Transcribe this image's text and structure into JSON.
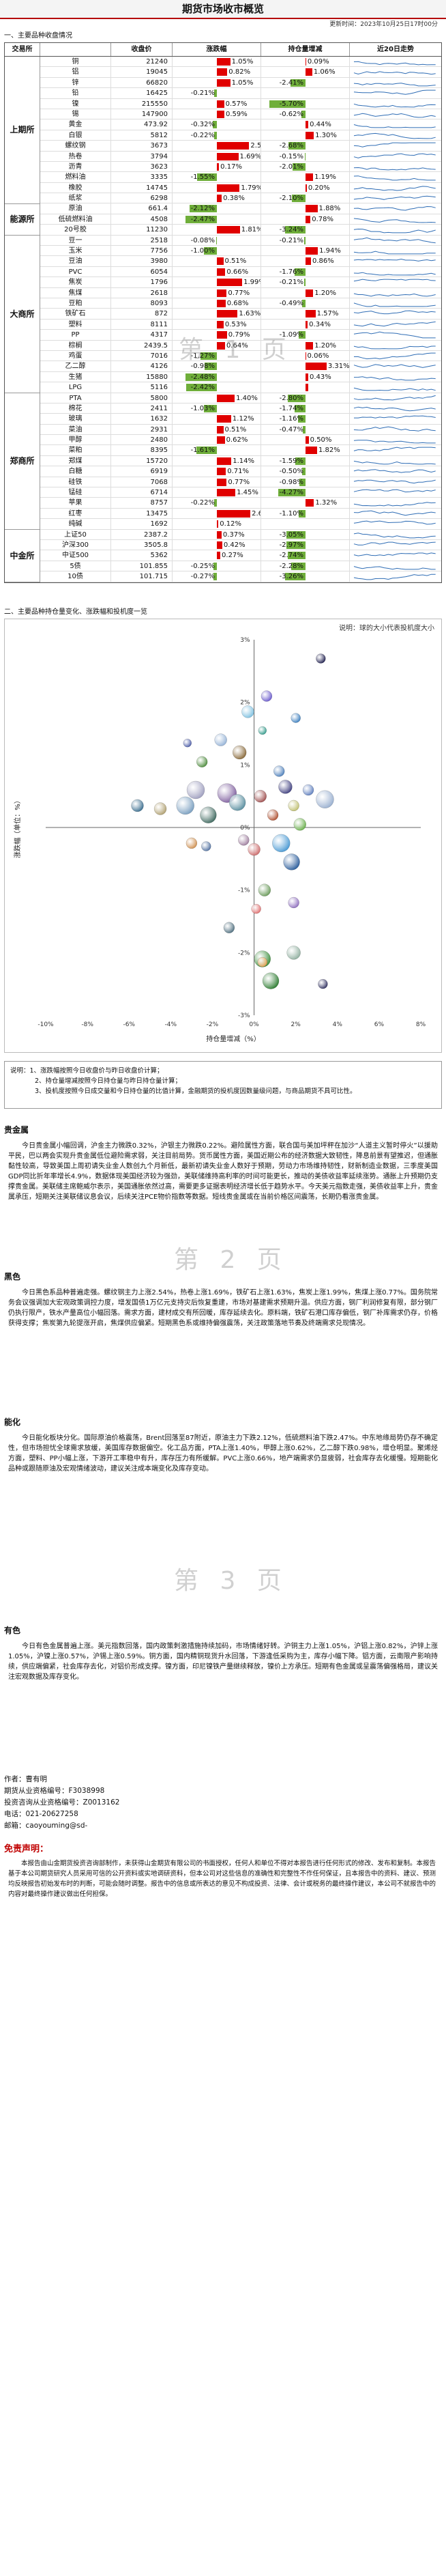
{
  "title": "期货市场收市概览",
  "update_time": "更新时间：2023年10月25日17时00分",
  "section1_title": "一、主要品种收盘情况",
  "table_headers": [
    "交易所",
    "收盘价",
    "涨跌幅",
    "持仓量增减",
    "近20日走势"
  ],
  "exchanges": [
    {
      "name": "上期所",
      "rows": [
        {
          "name": "铜",
          "price": "21240",
          "chg": 1.05,
          "chg_label": "1.05%",
          "oi": 0.09,
          "oi_label": "0.09%"
        },
        {
          "name": "铝",
          "price": "19045",
          "chg": 0.82,
          "chg_label": "0.82%",
          "oi": 1.06,
          "oi_label": "1.06%"
        },
        {
          "name": "锌",
          "price": "66820",
          "chg": 1.05,
          "chg_label": "1.05%",
          "oi": -2.41,
          "oi_label": "-2.41%"
        },
        {
          "name": "铅",
          "price": "16425",
          "chg": -0.21,
          "chg_label": "-0.21%",
          "oi": 0.0,
          "oi_label": ""
        },
        {
          "name": "镍",
          "price": "215550",
          "chg": 0.57,
          "chg_label": "0.57%",
          "oi": -5.7,
          "oi_label": "-5.70%"
        },
        {
          "name": "锡",
          "price": "147900",
          "oi": -0.62,
          "oi_label": "-0.62%",
          "chg": 0.59,
          "chg_label": "0.59%"
        },
        {
          "name": "黄金",
          "price": "473.92",
          "chg": -0.32,
          "chg_label": "-0.32%",
          "oi": 0.44,
          "oi_label": "0.44%"
        },
        {
          "name": "白银",
          "price": "5812",
          "chg": -0.22,
          "chg_label": "-0.22%",
          "oi": 1.3,
          "oi_label": "1.30%"
        },
        {
          "name": "螺纹钢",
          "price": "3673",
          "chg": 2.54,
          "chg_label": "2.54%",
          "oi": -2.68,
          "oi_label": "-2.68%"
        },
        {
          "name": "热卷",
          "price": "3794",
          "chg": 1.69,
          "chg_label": "1.69%",
          "oi": -0.15,
          "oi_label": "-0.15%"
        },
        {
          "name": "沥青",
          "price": "3623",
          "chg": 0.17,
          "chg_label": "0.17%",
          "oi": -2.01,
          "oi_label": "-2.01%"
        },
        {
          "name": "燃料油",
          "price": "3335",
          "chg": -1.55,
          "chg_label": "-1.55%",
          "oi": 1.19,
          "oi_label": "1.19%"
        },
        {
          "name": "橡胶",
          "price": "14745",
          "chg": 1.79,
          "chg_label": "1.79%",
          "oi": 0.2,
          "oi_label": "0.20%"
        },
        {
          "name": "纸浆",
          "price": "6298",
          "chg": 0.38,
          "chg_label": "0.38%",
          "oi": -2.1,
          "oi_label": "-2.10%"
        }
      ]
    },
    {
      "name": "能源所",
      "rows": [
        {
          "name": "原油",
          "price": "661.4",
          "chg": -2.12,
          "chg_label": "-2.12%",
          "oi": 1.88,
          "oi_label": "1.88%"
        },
        {
          "name": "低硫燃料油",
          "price": "4508",
          "chg": -2.47,
          "chg_label": "-2.47%",
          "oi": 0.78,
          "oi_label": "0.78%"
        },
        {
          "name": "20号胶",
          "price": "11230",
          "chg": 1.81,
          "chg_label": "1.81%",
          "oi": -3.24,
          "oi_label": "-3.24%"
        }
      ]
    },
    {
      "name": "大商所",
      "rows": [
        {
          "name": "豆一",
          "price": "2518",
          "chg": -0.08,
          "chg_label": "-0.08%",
          "oi": -0.21,
          "oi_label": "-0.21%"
        },
        {
          "name": "玉米",
          "price": "7756",
          "chg": -1.0,
          "chg_label": "-1.00%",
          "oi": 1.94,
          "oi_label": "1.94%"
        },
        {
          "name": "豆油",
          "price": "3980",
          "chg": 0.51,
          "chg_label": "0.51%",
          "oi": 0.86,
          "oi_label": "0.86%"
        },
        {
          "name": "PVC",
          "price": "6054",
          "chg": 0.66,
          "chg_label": "0.66%",
          "oi": -1.76,
          "oi_label": "-1.76%"
        },
        {
          "name": "焦炭",
          "price": "1796",
          "chg": 1.99,
          "chg_label": "1.99%",
          "oi": -0.21,
          "oi_label": "-0.21%"
        },
        {
          "name": "焦煤",
          "price": "2618",
          "chg": 0.77,
          "chg_label": "0.77%",
          "oi": 1.2,
          "oi_label": "1.20%"
        },
        {
          "name": "豆粕",
          "price": "8093",
          "chg": 0.68,
          "chg_label": "0.68%",
          "oi": -0.49,
          "oi_label": "-0.49%"
        },
        {
          "name": "铁矿石",
          "price": "872",
          "chg": 1.63,
          "chg_label": "1.63%",
          "oi": 1.57,
          "oi_label": "1.57%"
        },
        {
          "name": "塑料",
          "price": "8111",
          "chg": 0.53,
          "chg_label": "0.53%",
          "oi": 0.34,
          "oi_label": "0.34%"
        },
        {
          "name": "PP",
          "price": "4317",
          "chg": 0.79,
          "chg_label": "0.79%",
          "oi": -1.09,
          "oi_label": "-1.09%"
        },
        {
          "name": "棕榈",
          "price": "2439.5",
          "chg": 0.64,
          "chg_label": "0.64%",
          "oi": 1.2,
          "oi_label": "1.20%"
        },
        {
          "name": "鸡蛋",
          "price": "7016",
          "chg": -1.27,
          "chg_label": "-1.27%",
          "oi": 0.06,
          "oi_label": "0.06%"
        },
        {
          "name": "乙二醇",
          "price": "4126",
          "chg": -0.98,
          "chg_label": "-0.98%",
          "oi": 3.31,
          "oi_label": "3.31%"
        },
        {
          "name": "生猪",
          "price": "15880",
          "chg": -2.48,
          "chg_label": "-2.48%",
          "oi": 0.43,
          "oi_label": "0.43%"
        },
        {
          "name": "LPG",
          "price": "5116",
          "chg": -2.42,
          "chg_label": "-2.42%",
          "oi": 0.43,
          "oi_label": ""
        }
      ]
    },
    {
      "name": "郑商所",
      "rows": [
        {
          "name": "PTA",
          "price": "5800",
          "chg": 1.4,
          "chg_label": "1.40%",
          "oi": -2.8,
          "oi_label": "-2.80%"
        },
        {
          "name": "棉花",
          "price": "2411",
          "chg": -1.03,
          "chg_label": "-1.03%",
          "oi": -1.74,
          "oi_label": "-1.74%"
        },
        {
          "name": "玻璃",
          "price": "1632",
          "chg": 1.12,
          "chg_label": "1.12%",
          "oi": -1.16,
          "oi_label": "-1.16%"
        },
        {
          "name": "菜油",
          "price": "2931",
          "chg": 0.51,
          "chg_label": "0.51%",
          "oi": -0.47,
          "oi_label": "-0.47%"
        },
        {
          "name": "甲醇",
          "price": "2480",
          "chg": 0.62,
          "chg_label": "0.62%",
          "oi": 0.5,
          "oi_label": "0.50%"
        },
        {
          "name": "菜粕",
          "price": "8395",
          "chg": -1.61,
          "chg_label": "-1.61%",
          "oi": 1.82,
          "oi_label": "1.82%"
        },
        {
          "name": "郑煤",
          "price": "15720",
          "chg": 1.14,
          "chg_label": "1.14%",
          "oi": -1.59,
          "oi_label": "-1.59%"
        },
        {
          "name": "白糖",
          "price": "6919",
          "chg": 0.71,
          "chg_label": "0.71%",
          "oi": -0.5,
          "oi_label": "-0.50%"
        },
        {
          "name": "硅铁",
          "price": "7068",
          "chg": 0.77,
          "chg_label": "0.77%",
          "oi": -0.98,
          "oi_label": "-0.98%"
        },
        {
          "name": "锰硅",
          "price": "6714",
          "chg": 1.45,
          "chg_label": "1.45%",
          "oi": -4.27,
          "oi_label": "-4.27%"
        },
        {
          "name": "苹果",
          "price": "8757",
          "chg": -0.22,
          "chg_label": "-0.22%",
          "oi": 1.32,
          "oi_label": "1.32%"
        },
        {
          "name": "红枣",
          "price": "13475",
          "chg": 2.63,
          "chg_label": "2.63%",
          "oi": -1.1,
          "oi_label": "-1.10%"
        },
        {
          "name": "纯碱",
          "price": "1692",
          "chg": 0.12,
          "chg_label": "0.12%",
          "oi": 0.0,
          "oi_label": ""
        }
      ]
    },
    {
      "name": "中金所",
      "rows": [
        {
          "name": "上证50",
          "price": "2387.2",
          "chg": 0.37,
          "chg_label": "0.37%",
          "oi": -3.05,
          "oi_label": "-3.05%"
        },
        {
          "name": "沪深300",
          "price": "3505.8",
          "chg": 0.42,
          "chg_label": "0.42%",
          "oi": -2.97,
          "oi_label": "-2.97%"
        },
        {
          "name": "中证500",
          "price": "5362",
          "chg": 0.27,
          "chg_label": "0.27%",
          "oi": -2.74,
          "oi_label": "-2.74%"
        },
        {
          "name": "5债",
          "price": "101.855",
          "chg": -0.25,
          "chg_label": "-0.25%",
          "oi": -2.28,
          "oi_label": "-2.28%"
        },
        {
          "name": "10债",
          "price": "101.715",
          "chg": -0.27,
          "chg_label": "-0.27%",
          "oi": -3.26,
          "oi_label": "-3.26%"
        }
      ]
    }
  ],
  "watermark1": "第 1 页",
  "watermark2": "第 2 页",
  "watermark3": "第 3 页",
  "section2_title": "二、主要品种持仓量变化、涨跌幅和投机度一览",
  "chart_note": "说明：球的大小代表投机度大小",
  "chart_data": {
    "type": "scatter",
    "xlabel": "持仓量增减（%）",
    "ylabel": "涨跌幅（单位：%）",
    "xlim": [
      -10,
      8
    ],
    "ylim": [
      -3,
      3
    ],
    "xticks": [
      "-10%",
      "-8%",
      "-6%",
      "-4%",
      "-2%",
      "0%",
      "2%",
      "4%",
      "6%",
      "8%"
    ],
    "yticks": [
      "3%",
      "2%",
      "1%",
      "0%",
      "-1%",
      "-2%",
      "-3%"
    ],
    "points": [
      {
        "x": 3.2,
        "y": 2.7,
        "r": 7,
        "color": "#1f1f4f"
      },
      {
        "x": 0.6,
        "y": 2.1,
        "r": 8,
        "color": "#6a5acd"
      },
      {
        "x": 2.0,
        "y": 1.75,
        "r": 7,
        "color": "#3a7ebf"
      },
      {
        "x": 0.4,
        "y": 1.55,
        "r": 6,
        "color": "#2f9a8a"
      },
      {
        "x": -0.3,
        "y": 1.85,
        "r": 9,
        "color": "#7ec0e0"
      },
      {
        "x": -0.7,
        "y": 1.2,
        "r": 10,
        "color": "#8a6a3a"
      },
      {
        "x": -3.2,
        "y": 1.35,
        "r": 6,
        "color": "#4a5ba8"
      },
      {
        "x": -2.5,
        "y": 1.05,
        "r": 8,
        "color": "#4d8c3c"
      },
      {
        "x": -1.6,
        "y": 1.4,
        "r": 9,
        "color": "#95b3d7"
      },
      {
        "x": 1.2,
        "y": 0.9,
        "r": 8,
        "color": "#4f81bd"
      },
      {
        "x": -2.8,
        "y": 0.6,
        "r": 13,
        "color": "#a0a0c0"
      },
      {
        "x": -1.3,
        "y": 0.55,
        "r": 14,
        "color": "#7f5f9f"
      },
      {
        "x": -0.8,
        "y": 0.4,
        "r": 12,
        "color": "#5a8fa0"
      },
      {
        "x": 0.3,
        "y": 0.5,
        "r": 9,
        "color": "#a05050"
      },
      {
        "x": 1.5,
        "y": 0.65,
        "r": 10,
        "color": "#404080"
      },
      {
        "x": 1.9,
        "y": 0.35,
        "r": 8,
        "color": "#c0c070"
      },
      {
        "x": 2.6,
        "y": 0.6,
        "r": 8,
        "color": "#6080c0"
      },
      {
        "x": 3.4,
        "y": 0.45,
        "r": 13,
        "color": "#9ab0d0"
      },
      {
        "x": -3.3,
        "y": 0.35,
        "r": 13,
        "color": "#7a9fc0"
      },
      {
        "x": -4.5,
        "y": 0.3,
        "r": 9,
        "color": "#b0a070"
      },
      {
        "x": -5.6,
        "y": 0.35,
        "r": 9,
        "color": "#3b6e8f"
      },
      {
        "x": -2.2,
        "y": 0.2,
        "r": 12,
        "color": "#406a60"
      },
      {
        "x": 0.9,
        "y": 0.2,
        "r": 8,
        "color": "#b05030"
      },
      {
        "x": 2.2,
        "y": 0.05,
        "r": 9,
        "color": "#6ab04c"
      },
      {
        "x": -0.5,
        "y": -0.2,
        "r": 8,
        "color": "#a080a0"
      },
      {
        "x": 1.3,
        "y": -0.25,
        "r": 13,
        "color": "#4a9ad4"
      },
      {
        "x": 1.8,
        "y": -0.55,
        "r": 12,
        "color": "#2b5d9c"
      },
      {
        "x": -3.0,
        "y": -0.25,
        "r": 8,
        "color": "#d09050"
      },
      {
        "x": -2.3,
        "y": -0.3,
        "r": 7,
        "color": "#5070a0"
      },
      {
        "x": 0.0,
        "y": -0.35,
        "r": 9,
        "color": "#cc6b6b"
      },
      {
        "x": 0.5,
        "y": -1.0,
        "r": 9,
        "color": "#6a9b5a"
      },
      {
        "x": 1.9,
        "y": -1.2,
        "r": 8,
        "color": "#8f6fbf"
      },
      {
        "x": 0.1,
        "y": -1.3,
        "r": 7,
        "color": "#e07070"
      },
      {
        "x": -1.2,
        "y": -1.6,
        "r": 8,
        "color": "#507080"
      },
      {
        "x": 0.4,
        "y": -2.1,
        "r": 12,
        "color": "#3c8f3c"
      },
      {
        "x": 0.8,
        "y": -2.45,
        "r": 12,
        "color": "#2e7d32"
      },
      {
        "x": 0.4,
        "y": -2.15,
        "r": 7,
        "color": "#e0a050"
      },
      {
        "x": 3.3,
        "y": -2.5,
        "r": 7,
        "color": "#303060"
      },
      {
        "x": 1.9,
        "y": -2.0,
        "r": 10,
        "color": "#91b0a0"
      }
    ]
  },
  "chart_explain_1": "说明：1、涨跌幅按照今日收盘价与昨日收盘价计算；",
  "chart_explain_2": "2、持仓量增减按照今日持仓量与昨日持仓量计算；",
  "chart_explain_3": "3、投机度按照今日成交量和今日持仓量的比值计算，金融期货的投机度因数量级问题，与商品期货不具可比性。",
  "p1_title": "贵金属",
  "p1_body": "今日贵金属小幅回调，沪金主力微跌0.32%，沪银主力微跌0.22%。避险属性方面，联合国与美加坪秤在加沙“人道主义暂时停火”以援助平民，巴以两会实现升贵金属低位避险需求弱，关注目前局势。货币属性方面，美国近期公布的经济数据大致韧性，降息前景有望推迟，但通胀黏性较高，导致美国上周初请失业金人数创九个月新低，最新初请失业金人数好于预期，劳动力市场维持韧性，财新制造业数据，三季度美国GDP同比折年率增长4.9%，数据体现美国经济较为强劲，美联储维持高利率的时间可能更长，推动的美债收益率延续涨势。通胀上升预期仍支撑贵金属。美联储主席鲍威尔表示，美国通胀依然过高，需要更多证据表明经济增长低于趋势水平。今天美元指数走强，美债收益率上升，贵金属承压，短期关注美联储议息会议，后续关注PCE物价指数等数据。短线贵金属或在当前价格区间震荡，长期仍看涨贵金属。",
  "p2_title": "黑色",
  "p2_body": "今日黑色系品种普遍走强。螺纹钢主力上涨2.54%，热卷上涨1.69%，铁矿石上涨1.63%，焦炭上涨1.99%，焦煤上涨0.77%。国务院常务会议强调加大宏观政策调控力度，增发国债1万亿元支持灾后恢复重建，市场对基建需求预期升温。供应方面，钢厂利润修复有限，部分钢厂仍执行限产，铁水产量高位小幅回落。需求方面，建材成交有所回暖，库存延续去化。原料端，铁矿石港口库存偏低，钢厂补库需求仍存，价格获得支撑；焦炭第九轮提涨开启，焦煤供应偏紧。短期黑色系或维持偏强震荡，关注政策落地节奏及终端需求兑现情况。",
  "p3_title": "能化",
  "p3_body": "今日能化板块分化。国际原油价格震荡，Brent回落至87附近，原油主力下跌2.12%，低硫燃料油下跌2.47%。中东地缘局势仍存不确定性，但市场担忧全球需求放缓，美国库存数据偏空。化工品方面，PTA上涨1.40%，甲醇上涨0.62%，乙二醇下跌0.98%，增仓明显。聚烯烃方面，塑料、PP小幅上涨，下游开工率稳中有升，库存压力有所缓解。PVC上涨0.66%，地产端需求仍显疲弱，社会库存去化缓慢。短期能化品种或跟随原油及宏观情绪波动，建议关注成本端变化及库存变动。",
  "p4_title": "有色",
  "p4_body": "今日有色金属普遍上涨。美元指数回落，国内政策刺激措施持续加码，市场情绪好转。沪铜主力上涨1.05%，沪铝上涨0.82%，沪锌上涨1.05%，沪镍上涨0.57%，沪锡上涨0.59%。铜方面，国内精铜现货升水回落，下游逢低采购为主，库存小幅下降。铝方面，云南限产影响持续，供应端偏紧，社会库存去化，对铝价形成支撑。镍方面，印尼镍铁产量继续释放，镍价上方承压。短期有色金属或呈震荡偏强格局，建议关注宏观数据及库存变化。",
  "disclaimer_title": "免责声明：",
  "author_lines": [
    "作者：曹有明",
    "期货从业资格编号：F3038998",
    "投资咨询从业资格编号：Z0013162",
    "电话：021-20627258",
    "邮箱：caoyouming@sd-"
  ],
  "disclaimer_body": "本报告由山金期货投资咨询部制作，未获得山金期货有限公司的书面授权，任何人和单位不得对本报告进行任何形式的修改、发布和复制。本报告基于本公司期货研究人员采用可信的公开资料或实地调研资料，但本公司对这些信息的准确性和完整性不作任何保证，且本报告中的资料、建议、预测均反映报告初始发布时的判断，可能会随时调整。报告中的信息或所表达的意见不构成投资、法律、会计或税务的最终操作建议，本公司不就报告中的内容对最终操作建议做出任何担保。"
}
